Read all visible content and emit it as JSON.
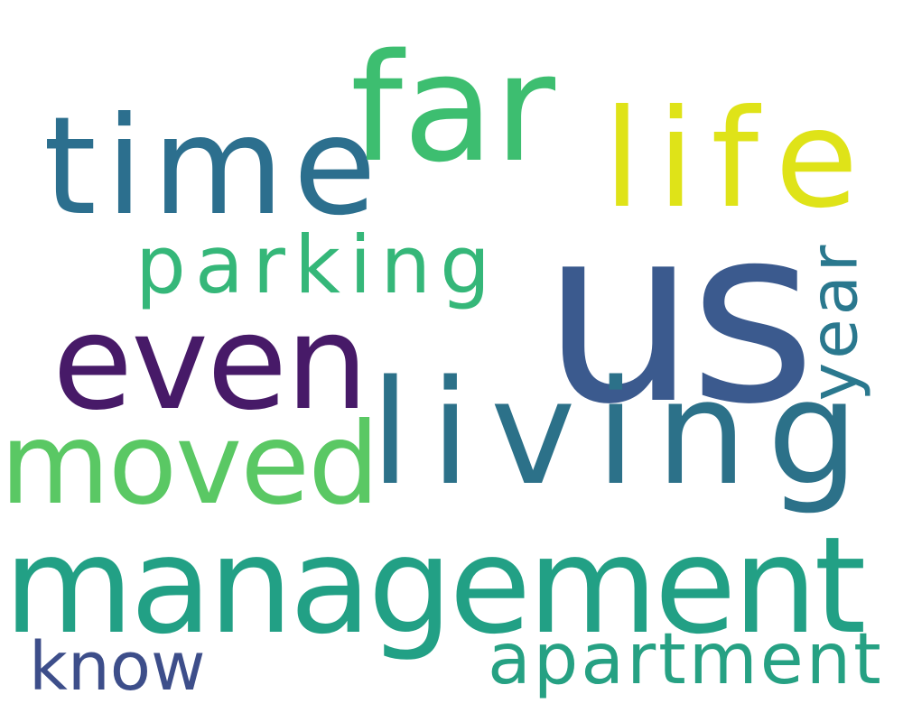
{
  "words": [
    {
      "text": "us",
      "color": "#3b5a8e"
    },
    {
      "text": "management",
      "color": "#22a085"
    },
    {
      "text": "living",
      "color": "#2c7189"
    },
    {
      "text": "time",
      "color": "#2c6f8e"
    },
    {
      "text": "far",
      "color": "#3dbe70"
    },
    {
      "text": "life",
      "color": "#dfe318"
    },
    {
      "text": "even",
      "color": "#471a68"
    },
    {
      "text": "moved",
      "color": "#5ac864"
    },
    {
      "text": "parking",
      "color": "#35b779"
    },
    {
      "text": "apartment",
      "color": "#26a183"
    },
    {
      "text": "year",
      "color": "#2a788e"
    },
    {
      "text": "know",
      "color": "#3d4e8a"
    }
  ]
}
